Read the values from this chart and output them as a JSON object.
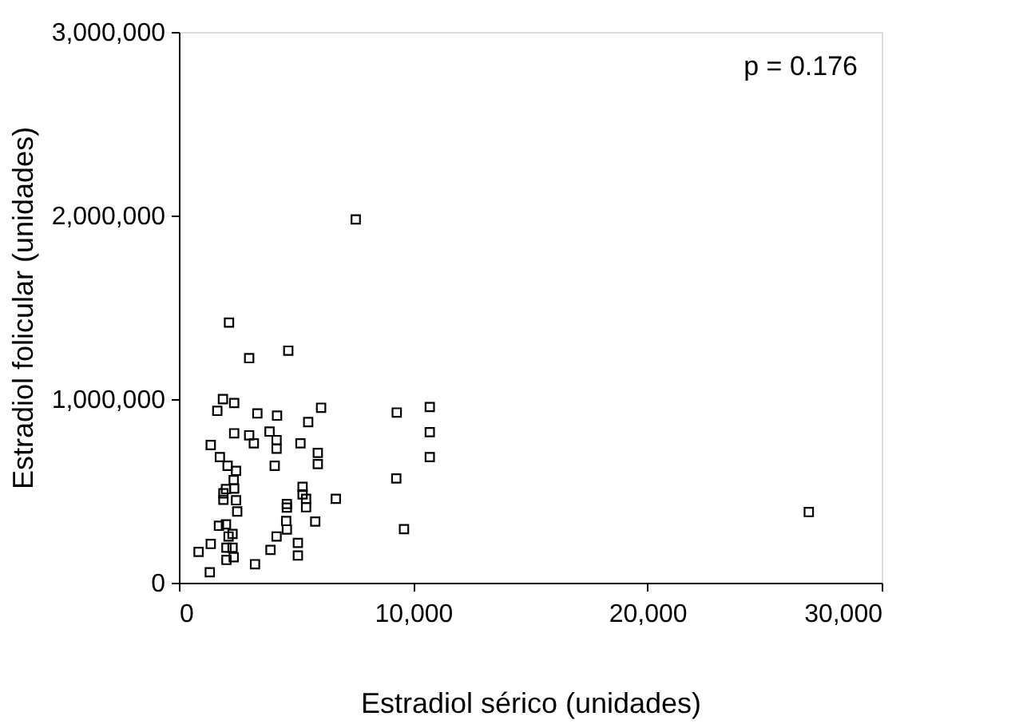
{
  "chart_data": {
    "type": "scatter",
    "xlabel": "Estradiol sérico (unidades)",
    "ylabel": "Estradiol folicular (unidades)",
    "annotations": [
      "p = 0.176"
    ],
    "marker": "square",
    "grid": false,
    "xlim": [
      0,
      30000
    ],
    "xticks": [
      {
        "value": 0,
        "label": "0"
      },
      {
        "value": 10000,
        "label": "10,000"
      },
      {
        "value": 20000,
        "label": "20,000"
      },
      {
        "value": 30000,
        "label": "30,000"
      }
    ],
    "ylim": [
      0,
      3000000
    ],
    "yticks": [
      {
        "value": 0,
        "label": "0"
      },
      {
        "value": 1000000,
        "label": "1,000,000"
      },
      {
        "value": 2000000,
        "label": "2,000,000"
      },
      {
        "value": 3000000,
        "label": "3,000,000"
      }
    ],
    "series": [
      {
        "color": "#000000",
        "x": [
          2140,
          3000,
          4670,
          1880,
          2360,
          1640,
          3350,
          4190,
          6070,
          5520,
          9300,
          2360,
          3000,
          3870,
          1360,
          3200,
          4170,
          4170,
          5190,
          5930,
          1750,
          5930,
          2080,
          4090,
          2440,
          2340,
          9280,
          2360,
          2010,
          1900,
          1900,
          5280,
          5280,
          5430,
          6700,
          2440,
          4610,
          4610,
          5430,
          2490,
          4580,
          5820,
          9610,
          1710,
          2010,
          4610,
          2290,
          2120,
          4170,
          1360,
          5080,
          2030,
          2290,
          3910,
          840,
          5080,
          2340,
          2030,
          3250,
          1320,
          7550,
          10710,
          10710,
          10710,
          26890
        ],
        "values": [
          1417000,
          1223000,
          1264000,
          1000000,
          979000,
          936000,
          922000,
          910000,
          953000,
          875000,
          927000,
          814000,
          803000,
          823000,
          750000,
          759000,
          777000,
          730000,
          759000,
          707000,
          684000,
          646000,
          637000,
          637000,
          609000,
          559000,
          568000,
          513000,
          510000,
          487000,
          452000,
          522000,
          481000,
          457000,
          457000,
          449000,
          429000,
          409000,
          411000,
          388000,
          336000,
          333000,
          292000,
          310000,
          318000,
          290000,
          266000,
          252000,
          252000,
          211000,
          217000,
          191000,
          191000,
          179000,
          168000,
          148000,
          139000,
          124000,
          101000,
          57000,
          1979000,
          957000,
          820000,
          684000,
          385000
        ]
      }
    ]
  }
}
